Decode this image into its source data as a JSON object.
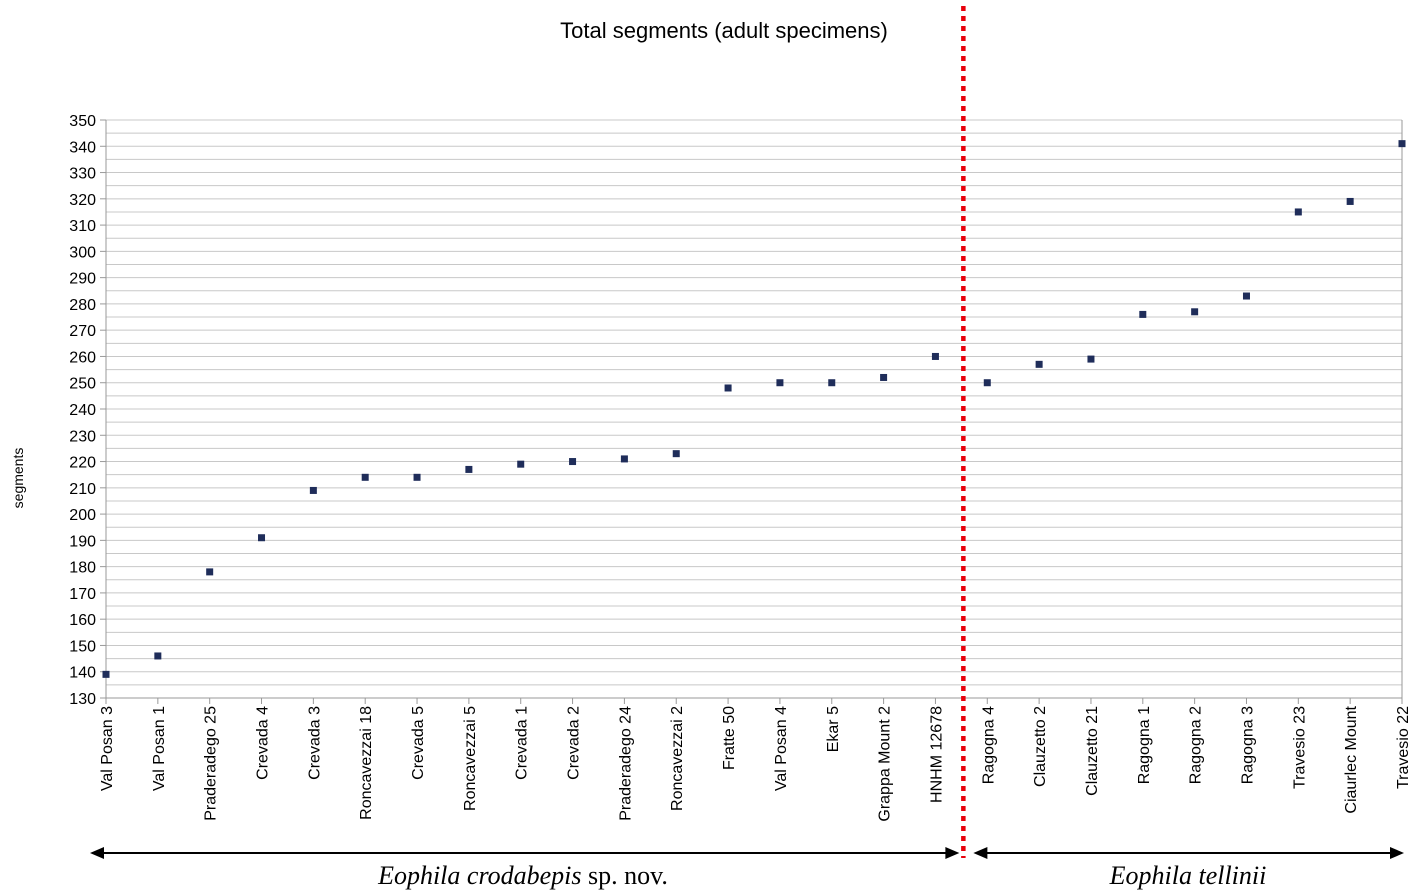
{
  "chart_data": {
    "type": "scatter",
    "title": "Total segments (adult specimens)",
    "xlabel": "",
    "ylabel": "segments",
    "ylim": [
      130,
      350
    ],
    "ytick_step": 10,
    "grid": true,
    "marker_color": "#1f2d5a",
    "grid_color": "#c8c8c8",
    "divider_color": "#e8000b",
    "categories": [
      "Val Posan 3",
      "Val Posan 1",
      "Praderadego 25",
      "Crevada 4",
      "Crevada 3",
      "Roncavezzai 18",
      "Crevada 5",
      "Roncavezzai 5",
      "Crevada 1",
      "Crevada 2",
      "Praderadego 24",
      "Roncavezzai 2",
      "Fratte 50",
      "Val Posan 4",
      "Ekar 5",
      "Grappa Mount 2",
      "HNHM 12678",
      "Ragogna 4",
      "Clauzetto 2",
      "Clauzetto 21",
      "Ragogna 1",
      "Ragogna 2",
      "Ragogna 3",
      "Travesio 23",
      "Ciaurlec Mount",
      "Travesio 22"
    ],
    "values": [
      139,
      146,
      178,
      191,
      209,
      214,
      214,
      217,
      219,
      220,
      221,
      223,
      248,
      250,
      250,
      252,
      260,
      250,
      257,
      259,
      276,
      277,
      283,
      315,
      319,
      341
    ],
    "groups": [
      {
        "name_italic": "Eophila crodabepis",
        "name_suffix": " sp. nov.",
        "from": 0,
        "to": 16
      },
      {
        "name_italic": "Eophila tellinii",
        "name_suffix": "",
        "from": 17,
        "to": 25
      }
    ]
  }
}
